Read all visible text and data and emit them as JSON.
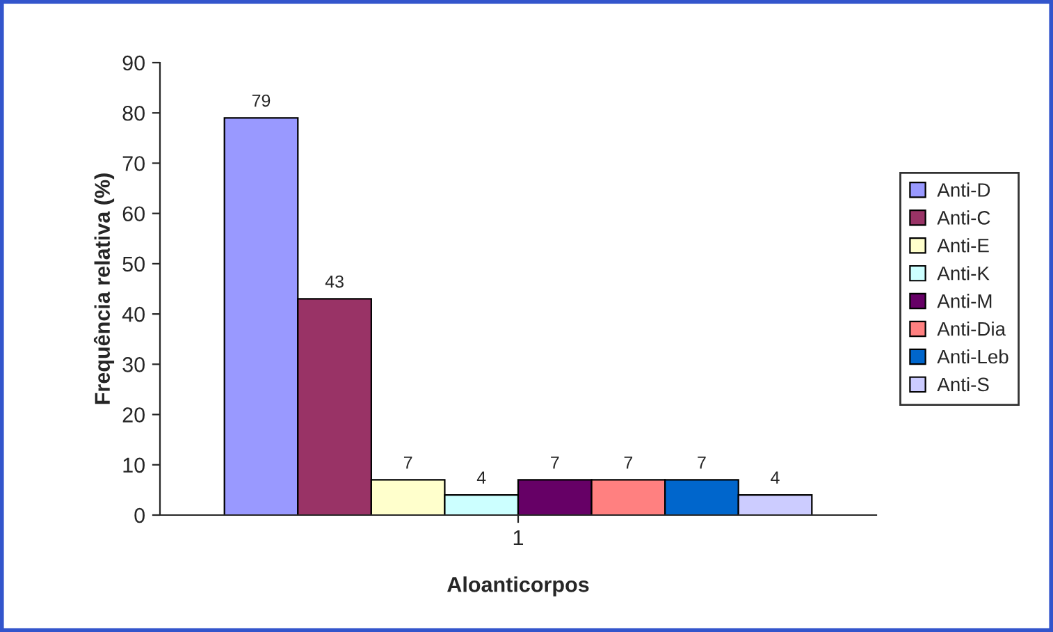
{
  "chart_data": {
    "type": "bar",
    "xlabel": "Aloanticorpos",
    "ylabel": "Frequência relativa (%)",
    "categories": [
      "1"
    ],
    "series": [
      {
        "name": "Anti-D",
        "color": "#9999ff",
        "values": [
          79
        ]
      },
      {
        "name": "Anti-C",
        "color": "#993366",
        "values": [
          43
        ]
      },
      {
        "name": "Anti-E",
        "color": "#ffffcc",
        "values": [
          7
        ]
      },
      {
        "name": "Anti-K",
        "color": "#ccffff",
        "values": [
          4
        ]
      },
      {
        "name": "Anti-M",
        "color": "#660066",
        "values": [
          7
        ]
      },
      {
        "name": "Anti-Dia",
        "color": "#ff8080",
        "values": [
          7
        ]
      },
      {
        "name": "Anti-Leb",
        "color": "#0066cc",
        "values": [
          7
        ]
      },
      {
        "name": "Anti-S",
        "color": "#ccccff",
        "values": [
          4
        ]
      }
    ],
    "ylim": [
      0,
      90
    ],
    "yticks": [
      0,
      10,
      20,
      30,
      40,
      50,
      60,
      70,
      80,
      90
    ],
    "data_labels": true,
    "grid": false,
    "legend": "right"
  }
}
